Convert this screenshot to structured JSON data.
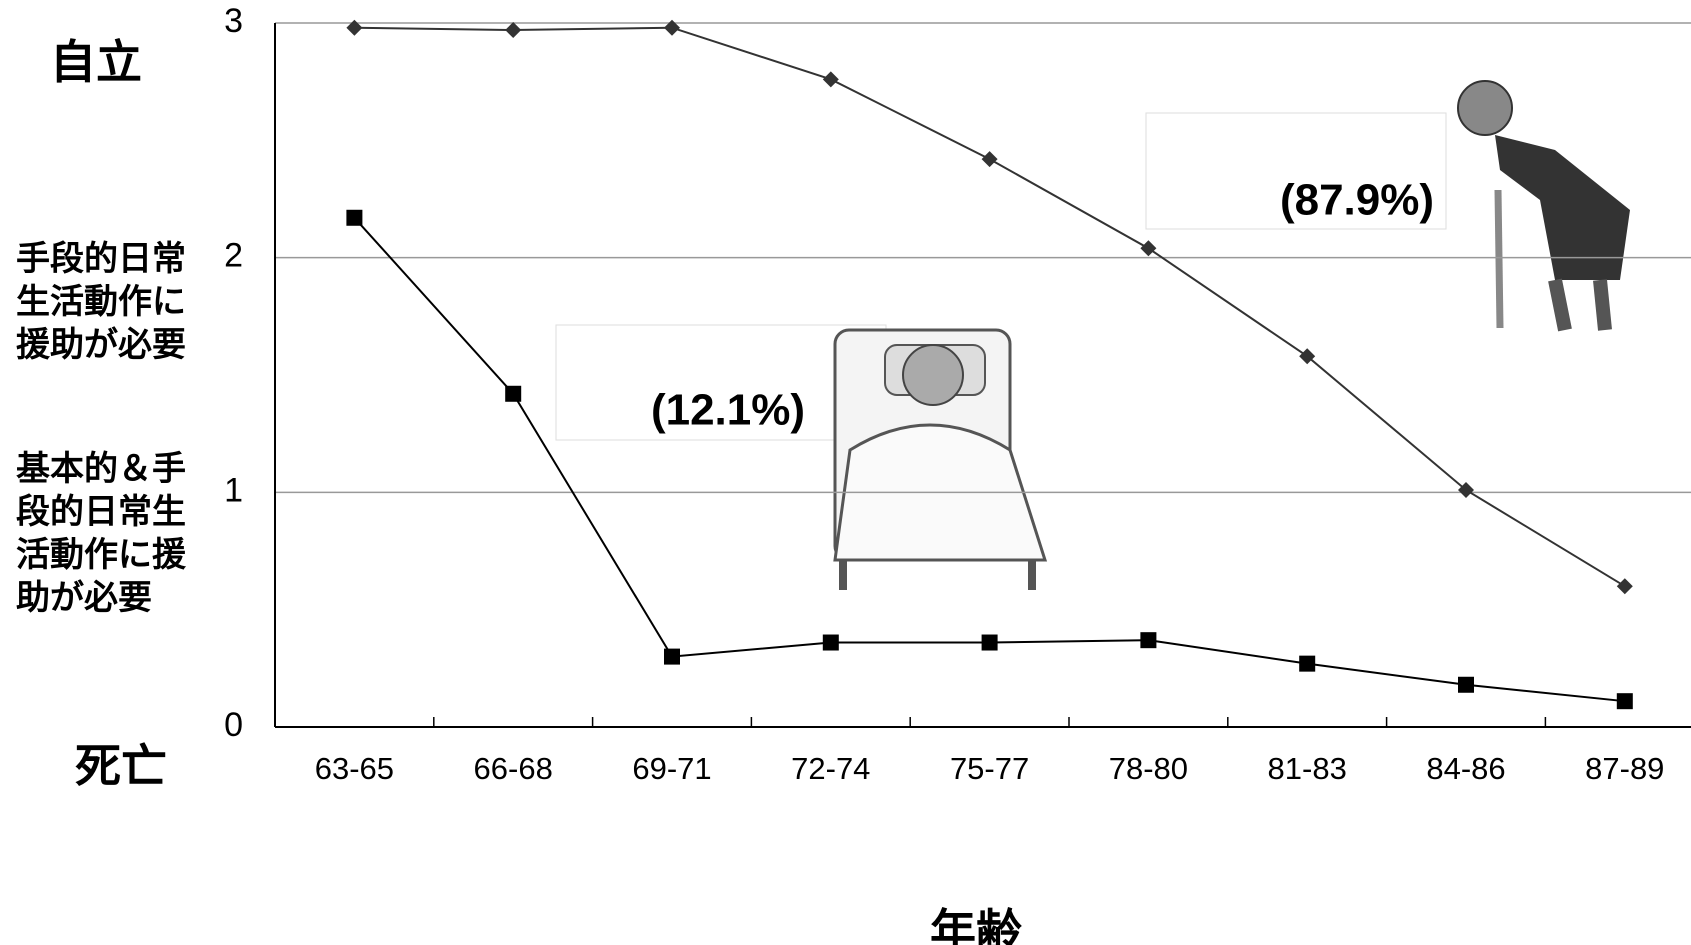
{
  "chart_data": {
    "type": "line",
    "categories": [
      "63-65",
      "66-68",
      "69-71",
      "72-74",
      "75-77",
      "78-80",
      "81-83",
      "84-86",
      "87-89"
    ],
    "series": [
      {
        "color": "#333333",
        "marker": "diamond",
        "values": [
          2.98,
          2.97,
          2.98,
          2.76,
          2.42,
          2.04,
          1.58,
          1.01,
          0.6
        ]
      },
      {
        "color": "#000000",
        "marker": "square",
        "values": [
          2.17,
          1.42,
          0.3,
          0.36,
          0.36,
          0.37,
          0.27,
          0.18,
          0.11
        ]
      }
    ],
    "ylim": [
      0,
      3
    ],
    "yticks": [
      0,
      1,
      2,
      3
    ],
    "grid": true,
    "y_level_labels": [
      {
        "value": 3,
        "label": "自立"
      },
      {
        "value": 2,
        "label": "手段的日常生活動作に援助が必要"
      },
      {
        "value": 1,
        "label": "基本的＆手段的日常生活動作に援助が必要"
      },
      {
        "value": 0,
        "label": "死亡"
      }
    ],
    "xlabel": "年齢",
    "annotations": [
      "(87.9%)",
      "(12.1%)"
    ]
  }
}
